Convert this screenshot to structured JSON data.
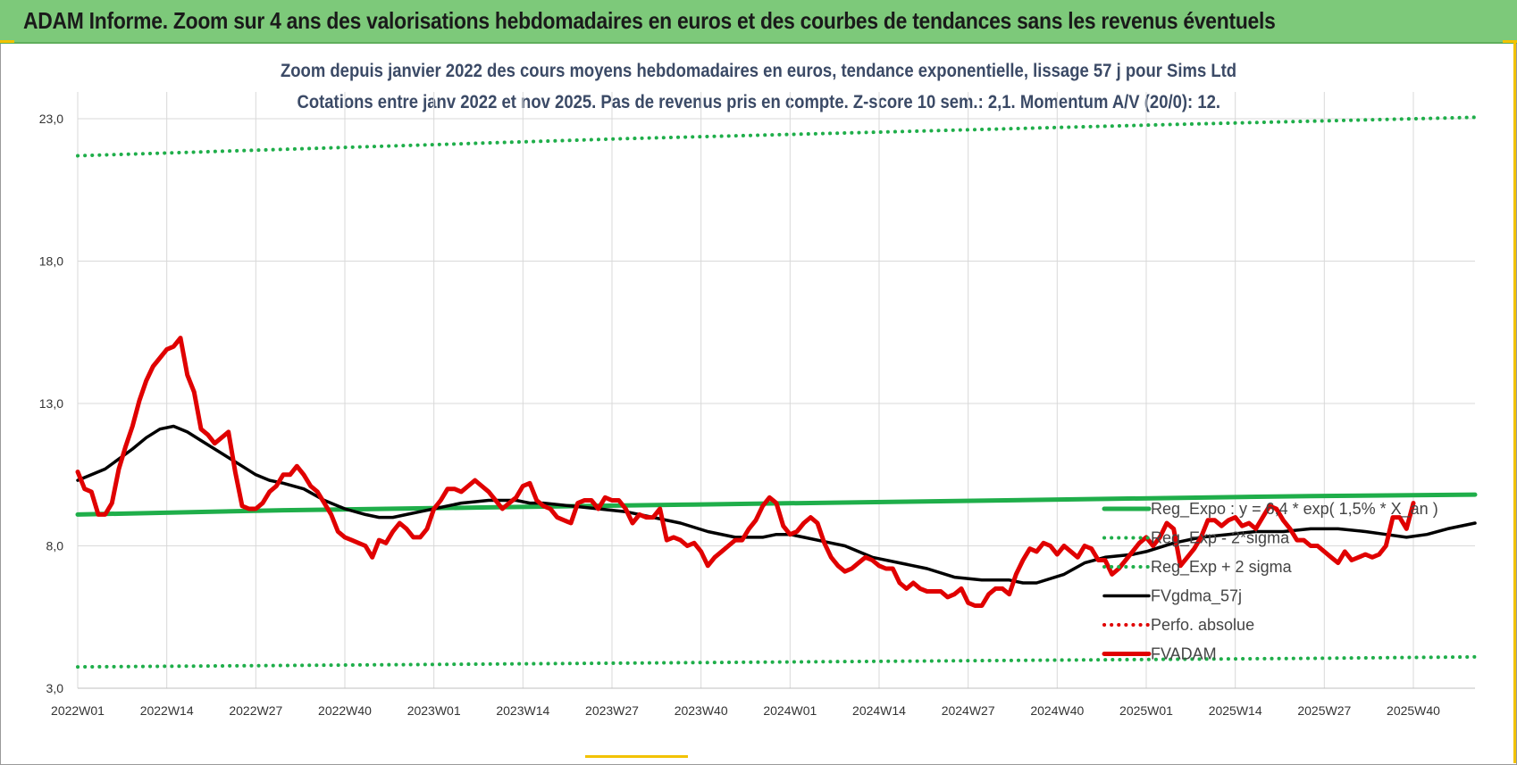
{
  "header": {
    "title": "ADAM Informe. Zoom sur 4 ans des valorisations hebdomadaires en euros et des courbes de tendances sans les revenus éventuels"
  },
  "chart_data": {
    "type": "line",
    "title": "Zoom depuis janvier 2022 des cours moyens hebdomadaires en euros, tendance exponentielle, lissage 57 j pour Sims Ltd",
    "subtitle": "Cotations entre janv 2022 et nov 2025. Pas de revenus pris en compte. Z-score 10 sem.: 2,1. Momentum A/V (20/0): 12.",
    "xlabel": "",
    "ylabel": "",
    "ylim": [
      3.0,
      23.0
    ],
    "yticks": [
      "3,0",
      "8,0",
      "13,0",
      "18,0",
      "23,0"
    ],
    "ytick_values": [
      3,
      8,
      13,
      18,
      23
    ],
    "x_start_week": "2022W01",
    "x_tick_labels": [
      "2022W01",
      "2022W14",
      "2022W27",
      "2022W40",
      "2023W01",
      "2023W14",
      "2023W27",
      "2023W40",
      "2024W01",
      "2024W14",
      "2024W27",
      "2024W40",
      "2025W01",
      "2025W14",
      "2025W27",
      "2025W40"
    ],
    "x_tick_index": [
      0,
      13,
      26,
      39,
      52,
      65,
      78,
      91,
      104,
      117,
      130,
      143,
      156,
      169,
      182,
      195
    ],
    "grid": true,
    "legend_position": "right",
    "series": [
      {
        "name": "Reg_Expo : y = 6,4 * exp( 1,5% * X_an )",
        "color": "#1fae4a",
        "style": "solid-thick",
        "points": [
          [
            0,
            9.1
          ],
          [
            30,
            9.25
          ],
          [
            60,
            9.35
          ],
          [
            90,
            9.45
          ],
          [
            120,
            9.55
          ],
          [
            150,
            9.65
          ],
          [
            180,
            9.75
          ],
          [
            204,
            9.8
          ]
        ]
      },
      {
        "name": "Reg_Exp - 2*sigma",
        "color": "#1fae4a",
        "style": "dotted",
        "points": [
          [
            0,
            3.75
          ],
          [
            60,
            3.85
          ],
          [
            120,
            3.95
          ],
          [
            180,
            4.05
          ],
          [
            204,
            4.1
          ]
        ]
      },
      {
        "name": "Reg_Exp + 2 sigma",
        "color": "#1fae4a",
        "style": "dotted",
        "points": [
          [
            0,
            21.7
          ],
          [
            40,
            22.0
          ],
          [
            80,
            22.3
          ],
          [
            120,
            22.55
          ],
          [
            160,
            22.8
          ],
          [
            204,
            23.05
          ]
        ]
      },
      {
        "name": "FVgdma_57j",
        "color": "#000000",
        "style": "solid",
        "points": [
          [
            0,
            10.3
          ],
          [
            4,
            10.7
          ],
          [
            8,
            11.4
          ],
          [
            10,
            11.8
          ],
          [
            12,
            12.1
          ],
          [
            14,
            12.2
          ],
          [
            16,
            12.0
          ],
          [
            18,
            11.7
          ],
          [
            22,
            11.1
          ],
          [
            24,
            10.8
          ],
          [
            26,
            10.5
          ],
          [
            28,
            10.3
          ],
          [
            30,
            10.2
          ],
          [
            33,
            10.0
          ],
          [
            36,
            9.6
          ],
          [
            39,
            9.3
          ],
          [
            42,
            9.1
          ],
          [
            44,
            9.0
          ],
          [
            46,
            9.0
          ],
          [
            48,
            9.1
          ],
          [
            50,
            9.2
          ],
          [
            52,
            9.3
          ],
          [
            56,
            9.5
          ],
          [
            60,
            9.6
          ],
          [
            64,
            9.6
          ],
          [
            66,
            9.5
          ],
          [
            68,
            9.5
          ],
          [
            72,
            9.4
          ],
          [
            76,
            9.3
          ],
          [
            80,
            9.2
          ],
          [
            84,
            9.0
          ],
          [
            88,
            8.8
          ],
          [
            92,
            8.5
          ],
          [
            96,
            8.3
          ],
          [
            100,
            8.3
          ],
          [
            102,
            8.4
          ],
          [
            104,
            8.4
          ],
          [
            106,
            8.3
          ],
          [
            110,
            8.1
          ],
          [
            112,
            8.0
          ],
          [
            116,
            7.6
          ],
          [
            120,
            7.4
          ],
          [
            124,
            7.2
          ],
          [
            128,
            6.9
          ],
          [
            132,
            6.8
          ],
          [
            136,
            6.8
          ],
          [
            138,
            6.7
          ],
          [
            140,
            6.7
          ],
          [
            144,
            7.0
          ],
          [
            147,
            7.4
          ],
          [
            150,
            7.6
          ],
          [
            154,
            7.7
          ],
          [
            156,
            7.8
          ],
          [
            160,
            8.1
          ],
          [
            164,
            8.3
          ],
          [
            168,
            8.4
          ],
          [
            172,
            8.5
          ],
          [
            176,
            8.5
          ],
          [
            180,
            8.6
          ],
          [
            184,
            8.6
          ],
          [
            188,
            8.5
          ],
          [
            191,
            8.4
          ],
          [
            194,
            8.3
          ],
          [
            197,
            8.4
          ],
          [
            200,
            8.6
          ],
          [
            204,
            8.8
          ]
        ]
      },
      {
        "name": "Perfo. absolue",
        "color": "#e00000",
        "style": "dotted",
        "points": []
      },
      {
        "name": "FVADAM",
        "color": "#e00000",
        "style": "solid-thick",
        "points": [
          [
            0,
            10.6
          ],
          [
            1,
            10.0
          ],
          [
            2,
            9.9
          ],
          [
            3,
            9.1
          ],
          [
            4,
            9.1
          ],
          [
            5,
            9.5
          ],
          [
            6,
            10.7
          ],
          [
            7,
            11.5
          ],
          [
            8,
            12.2
          ],
          [
            9,
            13.1
          ],
          [
            10,
            13.8
          ],
          [
            11,
            14.3
          ],
          [
            12,
            14.6
          ],
          [
            13,
            14.9
          ],
          [
            14,
            15.0
          ],
          [
            15,
            15.3
          ],
          [
            16,
            14.0
          ],
          [
            17,
            13.4
          ],
          [
            18,
            12.1
          ],
          [
            19,
            11.9
          ],
          [
            20,
            11.6
          ],
          [
            21,
            11.8
          ],
          [
            22,
            12.0
          ],
          [
            23,
            10.6
          ],
          [
            24,
            9.4
          ],
          [
            25,
            9.3
          ],
          [
            26,
            9.3
          ],
          [
            27,
            9.5
          ],
          [
            28,
            9.9
          ],
          [
            29,
            10.1
          ],
          [
            30,
            10.5
          ],
          [
            31,
            10.5
          ],
          [
            32,
            10.8
          ],
          [
            33,
            10.5
          ],
          [
            34,
            10.1
          ],
          [
            35,
            9.9
          ],
          [
            36,
            9.5
          ],
          [
            37,
            9.1
          ],
          [
            38,
            8.5
          ],
          [
            39,
            8.3
          ],
          [
            40,
            8.2
          ],
          [
            41,
            8.1
          ],
          [
            42,
            8.0
          ],
          [
            43,
            7.6
          ],
          [
            44,
            8.2
          ],
          [
            45,
            8.1
          ],
          [
            46,
            8.5
          ],
          [
            47,
            8.8
          ],
          [
            48,
            8.6
          ],
          [
            49,
            8.3
          ],
          [
            50,
            8.3
          ],
          [
            51,
            8.6
          ],
          [
            52,
            9.3
          ],
          [
            53,
            9.6
          ],
          [
            54,
            10.0
          ],
          [
            55,
            10.0
          ],
          [
            56,
            9.9
          ],
          [
            57,
            10.1
          ],
          [
            58,
            10.3
          ],
          [
            59,
            10.1
          ],
          [
            60,
            9.9
          ],
          [
            61,
            9.6
          ],
          [
            62,
            9.3
          ],
          [
            63,
            9.5
          ],
          [
            64,
            9.7
          ],
          [
            65,
            10.1
          ],
          [
            66,
            10.2
          ],
          [
            67,
            9.6
          ],
          [
            68,
            9.4
          ],
          [
            69,
            9.3
          ],
          [
            70,
            9.0
          ],
          [
            71,
            8.9
          ],
          [
            72,
            8.8
          ],
          [
            73,
            9.5
          ],
          [
            74,
            9.6
          ],
          [
            75,
            9.6
          ],
          [
            76,
            9.3
          ],
          [
            77,
            9.7
          ],
          [
            78,
            9.6
          ],
          [
            79,
            9.6
          ],
          [
            80,
            9.3
          ],
          [
            81,
            8.8
          ],
          [
            82,
            9.1
          ],
          [
            83,
            9.0
          ],
          [
            84,
            9.0
          ],
          [
            85,
            9.3
          ],
          [
            86,
            8.2
          ],
          [
            87,
            8.3
          ],
          [
            88,
            8.2
          ],
          [
            89,
            8.0
          ],
          [
            90,
            8.1
          ],
          [
            91,
            7.8
          ],
          [
            92,
            7.3
          ],
          [
            93,
            7.6
          ],
          [
            94,
            7.8
          ],
          [
            95,
            8.0
          ],
          [
            96,
            8.2
          ],
          [
            97,
            8.2
          ],
          [
            98,
            8.6
          ],
          [
            99,
            8.9
          ],
          [
            100,
            9.4
          ],
          [
            101,
            9.7
          ],
          [
            102,
            9.5
          ],
          [
            103,
            8.7
          ],
          [
            104,
            8.4
          ],
          [
            105,
            8.5
          ],
          [
            106,
            8.8
          ],
          [
            107,
            9.0
          ],
          [
            108,
            8.8
          ],
          [
            109,
            8.1
          ],
          [
            110,
            7.6
          ],
          [
            111,
            7.3
          ],
          [
            112,
            7.1
          ],
          [
            113,
            7.2
          ],
          [
            114,
            7.4
          ],
          [
            115,
            7.6
          ],
          [
            116,
            7.5
          ],
          [
            117,
            7.3
          ],
          [
            118,
            7.2
          ],
          [
            119,
            7.2
          ],
          [
            120,
            6.7
          ],
          [
            121,
            6.5
          ],
          [
            122,
            6.7
          ],
          [
            123,
            6.5
          ],
          [
            124,
            6.4
          ],
          [
            125,
            6.4
          ],
          [
            126,
            6.4
          ],
          [
            127,
            6.2
          ],
          [
            128,
            6.3
          ],
          [
            129,
            6.5
          ],
          [
            130,
            6.0
          ],
          [
            131,
            5.9
          ],
          [
            132,
            5.9
          ],
          [
            133,
            6.3
          ],
          [
            134,
            6.5
          ],
          [
            135,
            6.5
          ],
          [
            136,
            6.3
          ],
          [
            137,
            7.0
          ],
          [
            138,
            7.5
          ],
          [
            139,
            7.9
          ],
          [
            140,
            7.8
          ],
          [
            141,
            8.1
          ],
          [
            142,
            8.0
          ],
          [
            143,
            7.7
          ],
          [
            144,
            8.0
          ],
          [
            145,
            7.8
          ],
          [
            146,
            7.6
          ],
          [
            147,
            8.0
          ],
          [
            148,
            7.9
          ],
          [
            149,
            7.5
          ],
          [
            150,
            7.5
          ],
          [
            151,
            7.0
          ],
          [
            152,
            7.2
          ],
          [
            153,
            7.5
          ],
          [
            154,
            7.8
          ],
          [
            155,
            8.1
          ],
          [
            156,
            8.3
          ],
          [
            157,
            8.0
          ],
          [
            158,
            8.3
          ],
          [
            159,
            8.8
          ],
          [
            160,
            8.6
          ],
          [
            161,
            7.3
          ],
          [
            162,
            7.6
          ],
          [
            163,
            7.9
          ],
          [
            164,
            8.3
          ],
          [
            165,
            8.9
          ],
          [
            166,
            8.9
          ],
          [
            167,
            8.7
          ],
          [
            168,
            8.9
          ],
          [
            169,
            9.0
          ],
          [
            170,
            8.7
          ],
          [
            171,
            8.8
          ],
          [
            172,
            8.6
          ],
          [
            173,
            9.0
          ],
          [
            174,
            9.4
          ],
          [
            175,
            9.3
          ],
          [
            176,
            8.9
          ],
          [
            177,
            8.6
          ],
          [
            178,
            8.2
          ],
          [
            179,
            8.2
          ],
          [
            180,
            8.0
          ],
          [
            181,
            8.0
          ],
          [
            182,
            7.8
          ],
          [
            183,
            7.6
          ],
          [
            184,
            7.4
          ],
          [
            185,
            7.8
          ],
          [
            186,
            7.5
          ],
          [
            187,
            7.6
          ],
          [
            188,
            7.7
          ],
          [
            189,
            7.6
          ],
          [
            190,
            7.7
          ],
          [
            191,
            8.0
          ],
          [
            192,
            9.0
          ],
          [
            193,
            9.0
          ],
          [
            194,
            8.6
          ],
          [
            195,
            9.5
          ]
        ]
      }
    ]
  }
}
